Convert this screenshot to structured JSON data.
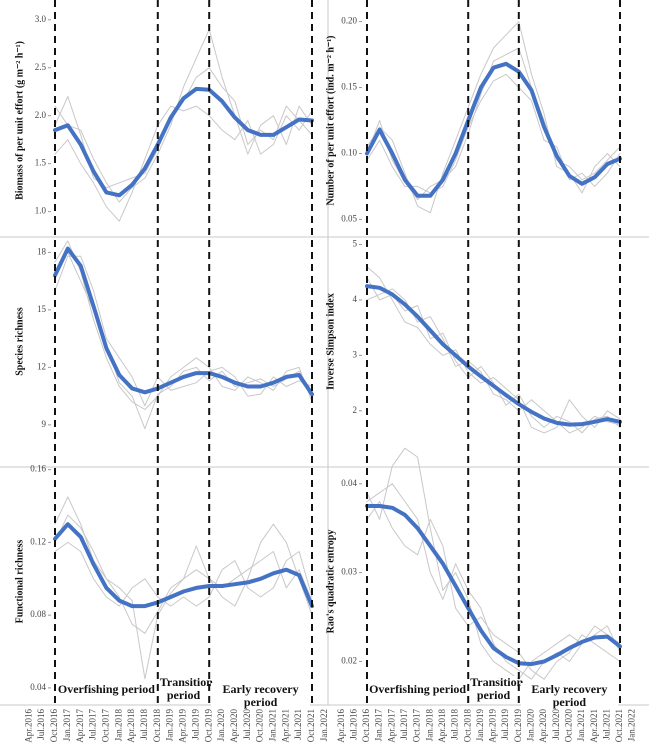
{
  "chart_data": [
    {
      "type": "line",
      "y_label": "Biomass of per unit effort (g m⁻² h⁻¹)",
      "ylim": [
        0.85,
        3.05
      ],
      "yticks": [
        {
          "value": 1,
          "label": "1.0"
        },
        1.5,
        {
          "value": 2,
          "label": "2.0"
        },
        2.5,
        {
          "value": 3,
          "label": "3.0"
        }
      ],
      "series": [
        {
          "color": "#c8c8c8",
          "values": [
            null,
            null,
            2.1,
            1.9,
            1.85,
            1.55,
            1.3,
            1.1,
            1.25,
            1.35,
            1.6,
            1.9,
            2.3,
            2.6,
            2.9,
            2.4,
            2.0,
            1.6,
            1.9,
            2.0,
            1.7,
            2.1,
            1.9,
            null
          ]
        },
        {
          "color": "#c8c8c8",
          "values": [
            null,
            null,
            1.6,
            1.75,
            1.5,
            1.3,
            1.05,
            0.9,
            1.2,
            1.55,
            1.9,
            2.1,
            2.05,
            2.1,
            2.0,
            1.85,
            1.75,
            1.95,
            1.6,
            1.7,
            2.0,
            1.85,
            2.05,
            null
          ]
        },
        {
          "color": "#c8c8c8",
          "values": [
            null,
            null,
            1.9,
            2.2,
            1.8,
            1.35,
            1.25,
            1.3,
            1.35,
            1.4,
            1.65,
            2.0,
            2.15,
            2.4,
            2.5,
            2.3,
            2.15,
            1.7,
            1.85,
            1.75,
            2.1,
            1.95,
            1.8,
            null
          ]
        },
        {
          "color": "#4472c4",
          "values": [
            null,
            null,
            1.85,
            1.9,
            1.7,
            1.42,
            1.2,
            1.17,
            1.28,
            1.45,
            1.7,
            1.98,
            2.18,
            2.28,
            2.27,
            2.15,
            1.98,
            1.85,
            1.8,
            1.8,
            1.88,
            1.96,
            1.95,
            null
          ]
        }
      ]
    },
    {
      "type": "line",
      "y_label": "Number of per unit effort (ind. m⁻² h⁻¹)",
      "ylim": [
        0.045,
        0.205
      ],
      "yticks": [
        0.05,
        {
          "value": 0.1,
          "label": "0.10"
        },
        0.15,
        {
          "value": 0.2,
          "label": "0.20"
        }
      ],
      "series": [
        {
          "color": "#c8c8c8",
          "values": [
            null,
            null,
            0.105,
            0.12,
            0.11,
            0.085,
            0.06,
            0.055,
            0.085,
            0.11,
            0.135,
            0.16,
            0.18,
            0.19,
            0.2,
            0.16,
            0.13,
            0.09,
            0.085,
            0.07,
            0.09,
            0.1,
            0.09,
            null
          ]
        },
        {
          "color": "#c8c8c8",
          "values": [
            null,
            null,
            0.095,
            0.11,
            0.09,
            0.075,
            0.075,
            0.07,
            0.075,
            0.095,
            0.12,
            0.14,
            0.155,
            0.16,
            0.15,
            0.14,
            0.11,
            0.105,
            0.08,
            0.085,
            0.075,
            0.085,
            0.1,
            null
          ]
        },
        {
          "color": "#c8c8c8",
          "values": [
            null,
            null,
            0.1,
            0.125,
            0.095,
            0.078,
            0.065,
            0.075,
            0.08,
            0.09,
            0.115,
            0.145,
            0.17,
            0.175,
            0.18,
            0.15,
            0.125,
            0.095,
            0.09,
            0.08,
            0.085,
            0.095,
            0.105,
            null
          ]
        },
        {
          "color": "#4472c4",
          "values": [
            null,
            null,
            0.1,
            0.118,
            0.1,
            0.08,
            0.068,
            0.068,
            0.08,
            0.1,
            0.125,
            0.15,
            0.165,
            0.168,
            0.162,
            0.148,
            0.12,
            0.098,
            0.083,
            0.077,
            0.082,
            0.092,
            0.096,
            null
          ]
        }
      ]
    },
    {
      "type": "line",
      "y_label": "Species richness",
      "ylim": [
        8,
        18.7
      ],
      "yticks": [
        9,
        12,
        15,
        18
      ],
      "series": [
        {
          "color": "#c8c8c8",
          "values": [
            null,
            null,
            17.5,
            18.6,
            17.0,
            14.5,
            12.5,
            11.0,
            10.2,
            9.8,
            10.5,
            11.5,
            12.0,
            12.5,
            12.0,
            11.0,
            10.8,
            11.5,
            11.2,
            10.8,
            11.8,
            12.0,
            10.2,
            null
          ]
        },
        {
          "color": "#c8c8c8",
          "values": [
            null,
            null,
            16.0,
            17.8,
            17.8,
            16.0,
            13.5,
            12.5,
            11.5,
            10.0,
            11.5,
            10.8,
            11.0,
            11.2,
            11.8,
            12.0,
            11.5,
            10.5,
            10.6,
            11.5,
            11.0,
            11.3,
            11.0,
            null
          ]
        },
        {
          "color": "#c8c8c8",
          "values": [
            null,
            null,
            17.0,
            18.0,
            16.5,
            15.0,
            13.2,
            11.2,
            10.5,
            8.8,
            10.6,
            11.0,
            11.8,
            12.0,
            11.3,
            11.8,
            11.0,
            11.2,
            11.4,
            11.0,
            11.4,
            11.8,
            10.5,
            null
          ]
        },
        {
          "color": "#4472c4",
          "values": [
            null,
            null,
            16.8,
            18.2,
            17.3,
            15.2,
            13,
            11.6,
            10.9,
            10.7,
            10.9,
            11.2,
            11.5,
            11.7,
            11.7,
            11.5,
            11.2,
            11.0,
            11.0,
            11.2,
            11.5,
            11.6,
            10.6,
            null
          ]
        }
      ]
    },
    {
      "type": "line",
      "y_label": "Inverse Simpson index",
      "ylim": [
        1.4,
        5.1
      ],
      "yticks": [
        2,
        3,
        4,
        5
      ],
      "series": [
        {
          "color": "#c8c8c8",
          "values": [
            null,
            null,
            4.6,
            4.4,
            4.0,
            3.6,
            3.5,
            3.2,
            3.0,
            3.1,
            2.7,
            2.5,
            2.6,
            2.4,
            2.2,
            1.7,
            1.6,
            1.7,
            2.2,
            1.9,
            1.7,
            2.0,
            1.85,
            null
          ]
        },
        {
          "color": "#c8c8c8",
          "values": [
            null,
            null,
            4.0,
            4.1,
            4.2,
            4.0,
            3.6,
            3.7,
            3.3,
            2.8,
            2.9,
            2.7,
            2.3,
            2.2,
            2.0,
            2.2,
            2.0,
            1.8,
            1.6,
            1.7,
            1.9,
            1.8,
            1.75,
            null
          ]
        },
        {
          "color": "#c8c8c8",
          "values": [
            null,
            null,
            4.4,
            4.0,
            4.1,
            3.8,
            3.9,
            3.3,
            3.4,
            2.9,
            2.6,
            2.8,
            2.5,
            2.1,
            2.3,
            1.9,
            1.7,
            1.9,
            1.8,
            1.6,
            1.85,
            1.9,
            1.7,
            null
          ]
        },
        {
          "color": "#4472c4",
          "values": [
            null,
            null,
            4.25,
            4.22,
            4.1,
            3.92,
            3.7,
            3.45,
            3.2,
            3.0,
            2.8,
            2.62,
            2.45,
            2.28,
            2.12,
            1.98,
            1.86,
            1.78,
            1.75,
            1.76,
            1.8,
            1.85,
            1.8,
            null
          ]
        }
      ]
    },
    {
      "type": "line",
      "y_label": "Functional richness",
      "ylim": [
        0.035,
        0.162
      ],
      "yticks": [
        0.04,
        0.08,
        0.12,
        0.16
      ],
      "categories": [
        "Apr.2016",
        "Jul.2016",
        "Oct.2016",
        "Jan.2017",
        "Apr.2017",
        "Jul.2017",
        "Oct.2017",
        "Jan.2018",
        "Apr.2018",
        "Jul.2018",
        "Oct.2018",
        "Jan.2019",
        "Apr.2019",
        "Jul.2019",
        "Oct.2019",
        "Jan.2020",
        "Apr.2020",
        "Jul.2020",
        "Oct.2020",
        "Jan.2021",
        "Apr.2021",
        "Jul.2021",
        "Oct.2021",
        "Jan.2022"
      ],
      "periods": [
        {
          "name": "Overfishing period",
          "start": "Oct.2016",
          "end": "Oct.2018"
        },
        {
          "name": "Transition period",
          "start": "Oct.2018",
          "end": "Oct.2019"
        },
        {
          "name": "Early recovery period",
          "start": "Oct.2019",
          "end": "Oct.2021"
        }
      ],
      "series": [
        {
          "color": "#c8c8c8",
          "values": [
            null,
            null,
            0.13,
            0.145,
            0.13,
            0.11,
            0.1,
            0.09,
            0.075,
            0.07,
            0.082,
            0.095,
            0.1,
            0.118,
            0.1,
            0.09,
            0.085,
            0.1,
            0.12,
            0.13,
            0.12,
            0.1,
            0.08,
            null
          ]
        },
        {
          "color": "#c8c8c8",
          "values": [
            null,
            null,
            0.115,
            0.12,
            0.115,
            0.1,
            0.09,
            0.085,
            0.095,
            0.1,
            0.09,
            0.085,
            0.09,
            0.085,
            0.09,
            0.105,
            0.11,
            0.095,
            0.09,
            0.095,
            0.11,
            0.115,
            0.09,
            null
          ]
        },
        {
          "color": "#c8c8c8",
          "values": [
            null,
            null,
            0.12,
            0.135,
            0.128,
            0.115,
            0.1,
            0.095,
            0.088,
            0.045,
            0.08,
            0.092,
            0.1,
            0.105,
            0.1,
            0.095,
            0.1,
            0.105,
            0.11,
            0.115,
            0.095,
            0.105,
            0.088,
            null
          ]
        },
        {
          "color": "#4472c4",
          "values": [
            null,
            null,
            0.122,
            0.13,
            0.123,
            0.108,
            0.095,
            0.088,
            0.085,
            0.085,
            0.087,
            0.09,
            0.093,
            0.095,
            0.096,
            0.096,
            0.097,
            0.098,
            0.1,
            0.103,
            0.105,
            0.102,
            0.085,
            null
          ]
        }
      ]
    },
    {
      "type": "line",
      "y_label": "Rao's quadratic entropy",
      "ylim": [
        0.016,
        0.042
      ],
      "yticks": [
        0.02,
        0.03,
        0.04
      ],
      "categories": [
        "Apr.2016",
        "Jul.2016",
        "Oct.2016",
        "Jan.2017",
        "Apr.2017",
        "Jul.2017",
        "Oct.2017",
        "Jan.2018",
        "Apr.2018",
        "Jul.2018",
        "Oct.2018",
        "Jan.2019",
        "Apr.2019",
        "Jul.2019",
        "Oct.2019",
        "Jan.2020",
        "Apr.2020",
        "Jul.2020",
        "Oct.2020",
        "Jan.2021",
        "Apr.2021",
        "Jul.2021",
        "Oct.2021",
        "Jan.2022"
      ],
      "periods": [
        {
          "name": "Overfishing period",
          "start": "Oct.2016",
          "end": "Oct.2018"
        },
        {
          "name": "Transition period",
          "start": "Oct.2018",
          "end": "Oct.2019"
        },
        {
          "name": "Early recovery period",
          "start": "Oct.2019",
          "end": "Oct.2021"
        }
      ],
      "series": [
        {
          "color": "#c8c8c8",
          "values": [
            null,
            null,
            0.039,
            0.036,
            0.042,
            0.044,
            0.043,
            0.035,
            0.028,
            0.03,
            0.027,
            0.022,
            0.02,
            0.019,
            0.018,
            0.02,
            0.021,
            0.022,
            0.023,
            0.022,
            0.024,
            0.023,
            0.022,
            null
          ]
        },
        {
          "color": "#c8c8c8",
          "values": [
            null,
            null,
            0.036,
            0.038,
            0.035,
            0.033,
            0.032,
            0.036,
            0.033,
            0.026,
            0.024,
            0.025,
            0.023,
            0.022,
            0.021,
            0.019,
            0.018,
            0.02,
            0.021,
            0.023,
            0.022,
            0.021,
            0.02,
            null
          ]
        },
        {
          "color": "#c8c8c8",
          "values": [
            null,
            null,
            0.038,
            0.039,
            0.04,
            0.038,
            0.036,
            0.03,
            0.027,
            0.031,
            0.028,
            0.026,
            0.022,
            0.02,
            0.019,
            0.018,
            0.02,
            0.021,
            0.02,
            0.022,
            0.023,
            0.024,
            0.021,
            null
          ]
        },
        {
          "color": "#4472c4",
          "values": [
            null,
            null,
            0.0375,
            0.0375,
            0.0373,
            0.0365,
            0.035,
            0.033,
            0.031,
            0.0285,
            0.026,
            0.0235,
            0.0215,
            0.0205,
            0.0198,
            0.0197,
            0.02,
            0.0207,
            0.0215,
            0.0222,
            0.0227,
            0.0228,
            0.0217,
            null
          ]
        }
      ]
    }
  ]
}
